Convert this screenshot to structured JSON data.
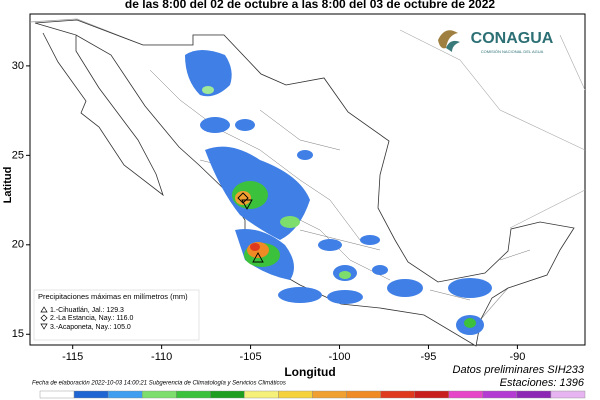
{
  "title": "de las 8:00 del 02 de octubre a las 8:00 del 03 de octubre de 2022",
  "logo": {
    "name": "CONAGUA",
    "subtitle": "COMISIÓN NACIONAL DEL AGUA"
  },
  "map": {
    "xlabel": "Longitud",
    "ylabel": "Latitud",
    "xlim": [
      -117.4,
      -86.2
    ],
    "ylim": [
      14.4,
      32.9
    ],
    "xticks": [
      -115,
      -110,
      -105,
      -100,
      -95,
      -90
    ],
    "yticks": [
      15,
      20,
      25,
      30
    ]
  },
  "legend": {
    "title": "Precipitaciones máximas en milímetros (mm)",
    "entries": [
      "1.-Cihuatlán, Jal.: 129.3",
      "2.-La Estancia, Nay.: 116.0",
      "3.-Acaponeta, Nay.: 105.0"
    ]
  },
  "footer": {
    "left": "Fecha de elaboración 2022-10-03 14:00:21 Subgerencia de Climatología y Servicios Climáticos",
    "source": "Datos preliminares SIH233",
    "stations": "Estaciones:  1396"
  }
}
